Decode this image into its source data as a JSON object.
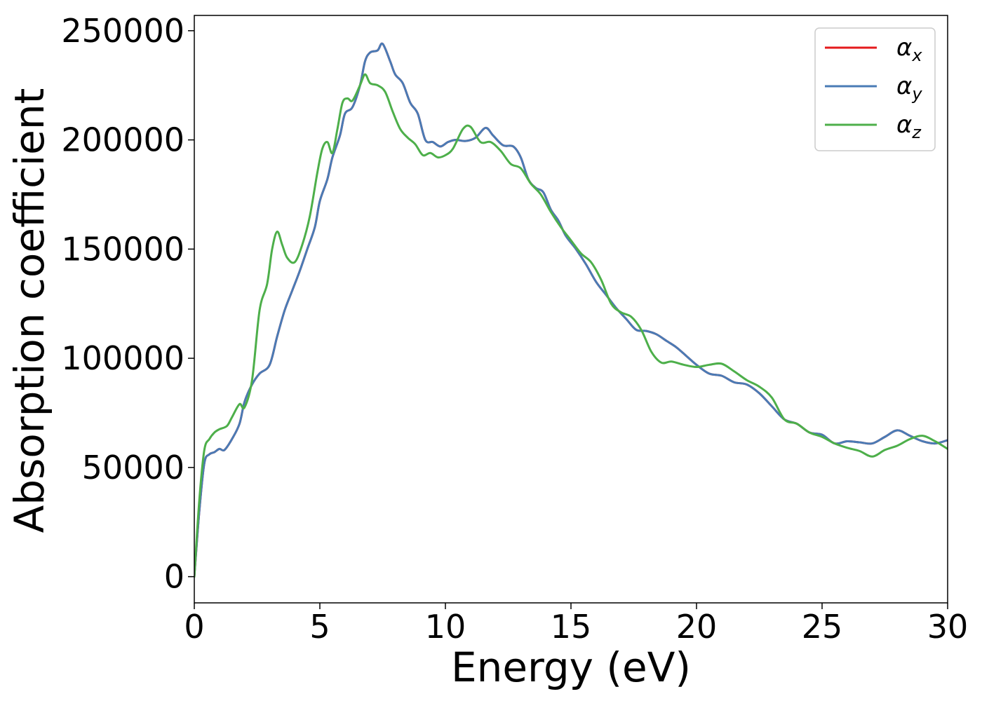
{
  "chart_data": {
    "type": "line",
    "title": "",
    "xlabel": "Energy (eV)",
    "ylabel": "Absorption coefficient",
    "xlim": [
      0,
      30
    ],
    "ylim": [
      -12000,
      257000
    ],
    "xticks": [
      0,
      5,
      10,
      15,
      20,
      25,
      30
    ],
    "yticks": [
      0,
      50000,
      100000,
      150000,
      200000,
      250000
    ],
    "xtick_labels": [
      "0",
      "5",
      "10",
      "15",
      "20",
      "25",
      "30"
    ],
    "ytick_labels": [
      "0",
      "50000",
      "100000",
      "150000",
      "200000",
      "250000"
    ],
    "grid": false,
    "legend_position": "top-right",
    "series": [
      {
        "name": "α",
        "subscript": "x",
        "color": "#e41a1c",
        "x": [
          0,
          0.2,
          0.4,
          0.6,
          0.8,
          1.0,
          1.2,
          1.5,
          1.8,
          2.0,
          2.3,
          2.6,
          3.0,
          3.3,
          3.6,
          3.9,
          4.2,
          4.5,
          4.8,
          5.0,
          5.3,
          5.5,
          5.8,
          6.0,
          6.3,
          6.6,
          6.8,
          7.0,
          7.3,
          7.5,
          7.8,
          8.0,
          8.3,
          8.6,
          8.9,
          9.2,
          9.5,
          9.8,
          10.1,
          10.4,
          10.8,
          11.2,
          11.6,
          11.9,
          12.3,
          12.7,
          13.0,
          13.3,
          13.6,
          13.9,
          14.2,
          14.5,
          14.8,
          15.2,
          15.6,
          16.0,
          16.4,
          16.8,
          17.2,
          17.6,
          18.0,
          18.4,
          18.8,
          19.2,
          19.6,
          20.0,
          20.5,
          21.0,
          21.5,
          22.0,
          22.5,
          23.0,
          23.5,
          24.0,
          24.5,
          25.0,
          25.5,
          26.0,
          26.5,
          27.0,
          27.5,
          28.0,
          28.5,
          29.0,
          29.5,
          30.0
        ],
        "values": [
          0,
          30000,
          52000,
          56000,
          57000,
          58500,
          58000,
          63000,
          70000,
          80000,
          88000,
          93000,
          97000,
          110000,
          122000,
          131000,
          140000,
          150000,
          160000,
          172000,
          182000,
          192000,
          202000,
          212000,
          215000,
          225000,
          236000,
          240000,
          241000,
          244000,
          236000,
          230000,
          226000,
          217000,
          212000,
          200000,
          199000,
          197000,
          199000,
          200000,
          199500,
          201000,
          205500,
          202000,
          197500,
          197000,
          192000,
          182000,
          178000,
          176000,
          168000,
          163000,
          156000,
          150000,
          143000,
          135000,
          129000,
          123000,
          118000,
          113000,
          112500,
          111000,
          108000,
          105000,
          101000,
          97000,
          93000,
          92000,
          89000,
          88000,
          84000,
          78000,
          72000,
          70000,
          66000,
          65000,
          61000,
          62000,
          61500,
          61000,
          64000,
          67000,
          64500,
          62000,
          61000,
          62500
        ]
      },
      {
        "name": "α",
        "subscript": "y",
        "color": "#4a7bb5",
        "x": [
          0,
          0.2,
          0.4,
          0.6,
          0.8,
          1.0,
          1.2,
          1.5,
          1.8,
          2.0,
          2.3,
          2.6,
          3.0,
          3.3,
          3.6,
          3.9,
          4.2,
          4.5,
          4.8,
          5.0,
          5.3,
          5.5,
          5.8,
          6.0,
          6.3,
          6.6,
          6.8,
          7.0,
          7.3,
          7.5,
          7.8,
          8.0,
          8.3,
          8.6,
          8.9,
          9.2,
          9.5,
          9.8,
          10.1,
          10.4,
          10.8,
          11.2,
          11.6,
          11.9,
          12.3,
          12.7,
          13.0,
          13.3,
          13.6,
          13.9,
          14.2,
          14.5,
          14.8,
          15.2,
          15.6,
          16.0,
          16.4,
          16.8,
          17.2,
          17.6,
          18.0,
          18.4,
          18.8,
          19.2,
          19.6,
          20.0,
          20.5,
          21.0,
          21.5,
          22.0,
          22.5,
          23.0,
          23.5,
          24.0,
          24.5,
          25.0,
          25.5,
          26.0,
          26.5,
          27.0,
          27.5,
          28.0,
          28.5,
          29.0,
          29.5,
          30.0
        ],
        "values": [
          0,
          30000,
          52000,
          56000,
          57000,
          58500,
          58000,
          63000,
          70000,
          80000,
          88000,
          93000,
          97000,
          110000,
          122000,
          131000,
          140000,
          150000,
          160000,
          172000,
          182000,
          192000,
          202000,
          212000,
          215000,
          225000,
          236000,
          240000,
          241000,
          244000,
          236000,
          230000,
          226000,
          217000,
          212000,
          200000,
          199000,
          197000,
          199000,
          200000,
          199500,
          201000,
          205500,
          202000,
          197500,
          197000,
          192000,
          182000,
          178000,
          176000,
          168000,
          163000,
          156000,
          150000,
          143000,
          135000,
          129000,
          123000,
          118000,
          113000,
          112500,
          111000,
          108000,
          105000,
          101000,
          97000,
          93000,
          92000,
          89000,
          88000,
          84000,
          78000,
          72000,
          70000,
          66000,
          65000,
          61000,
          62000,
          61500,
          61000,
          64000,
          67000,
          64500,
          62000,
          61000,
          62500
        ]
      },
      {
        "name": "α",
        "subscript": "z",
        "color": "#4daf4a",
        "x": [
          0,
          0.2,
          0.4,
          0.6,
          0.8,
          1.0,
          1.3,
          1.5,
          1.8,
          2.0,
          2.3,
          2.6,
          2.9,
          3.1,
          3.3,
          3.5,
          3.7,
          4.0,
          4.3,
          4.6,
          4.9,
          5.1,
          5.3,
          5.5,
          5.7,
          5.9,
          6.1,
          6.3,
          6.6,
          6.8,
          7.0,
          7.3,
          7.6,
          7.9,
          8.2,
          8.5,
          8.8,
          9.1,
          9.4,
          9.7,
          10.0,
          10.3,
          10.7,
          11.0,
          11.4,
          11.8,
          12.2,
          12.6,
          13.0,
          13.4,
          13.8,
          14.2,
          14.6,
          15.0,
          15.4,
          15.8,
          16.2,
          16.6,
          17.0,
          17.4,
          17.8,
          18.2,
          18.6,
          19.0,
          19.5,
          20.0,
          20.5,
          21.0,
          21.5,
          22.0,
          22.5,
          23.0,
          23.5,
          24.0,
          24.5,
          25.0,
          25.5,
          26.0,
          26.5,
          27.0,
          27.5,
          28.0,
          28.5,
          29.0,
          29.5,
          30.0
        ],
        "values": [
          0,
          35000,
          58000,
          63000,
          66000,
          67500,
          69000,
          73000,
          79000,
          77500,
          90000,
          122000,
          134000,
          150000,
          158000,
          152000,
          146000,
          144000,
          152000,
          165000,
          185000,
          196000,
          199000,
          194000,
          205000,
          217000,
          219000,
          218000,
          225000,
          230000,
          226000,
          225000,
          222000,
          213000,
          205000,
          201000,
          198000,
          193000,
          194000,
          192000,
          193000,
          196000,
          205000,
          206000,
          199000,
          199000,
          195000,
          189000,
          187000,
          180000,
          175000,
          167000,
          160000,
          154000,
          148000,
          144000,
          136000,
          125000,
          121000,
          119000,
          113000,
          103000,
          98000,
          98500,
          97000,
          96000,
          97000,
          97500,
          94000,
          90000,
          87000,
          82000,
          72000,
          70000,
          66000,
          64000,
          61000,
          59000,
          57500,
          55000,
          58000,
          60000,
          63000,
          64500,
          62000,
          58500
        ]
      }
    ]
  }
}
